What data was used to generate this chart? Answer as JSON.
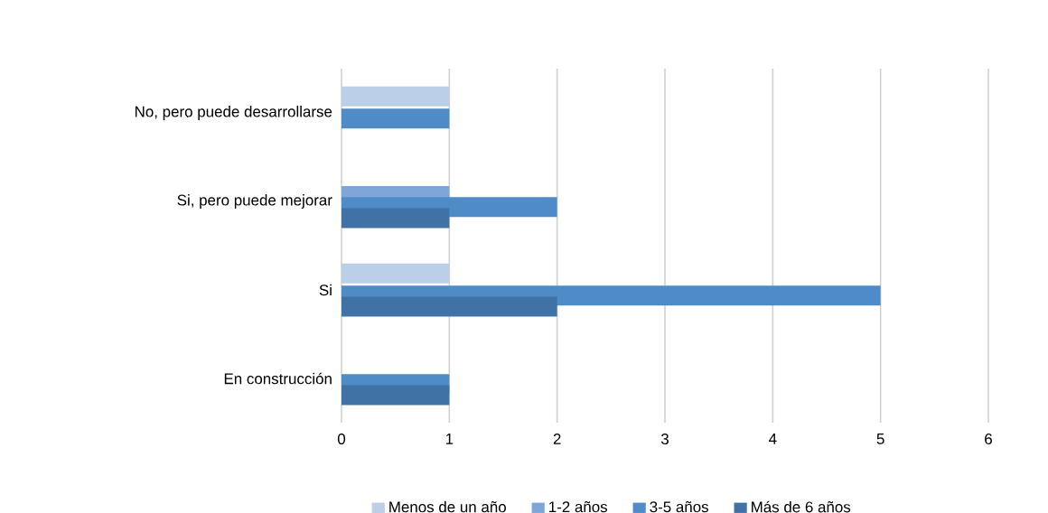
{
  "chart_data": {
    "type": "bar",
    "orientation": "horizontal",
    "categories": [
      "No, pero puede desarrollarse",
      "Si, pero puede mejorar",
      "Si",
      "En construcción"
    ],
    "series": [
      {
        "name": "Menos de un año",
        "color": "#bccfe9",
        "values": [
          1,
          0,
          1,
          0
        ]
      },
      {
        "name": "1-2 años",
        "color": "#7fa6d8",
        "values": [
          0,
          1,
          0,
          0
        ]
      },
      {
        "name": "3-5 años",
        "color": "#4f8bc7",
        "values": [
          1,
          2,
          5,
          1
        ]
      },
      {
        "name": "Más de 6 años",
        "color": "#4172a5",
        "values": [
          0,
          1,
          2,
          1
        ]
      }
    ],
    "xlim": [
      0,
      6
    ],
    "xticks": [
      0,
      1,
      2,
      3,
      4,
      5,
      6
    ],
    "grid": "x",
    "legend": "bottom"
  }
}
